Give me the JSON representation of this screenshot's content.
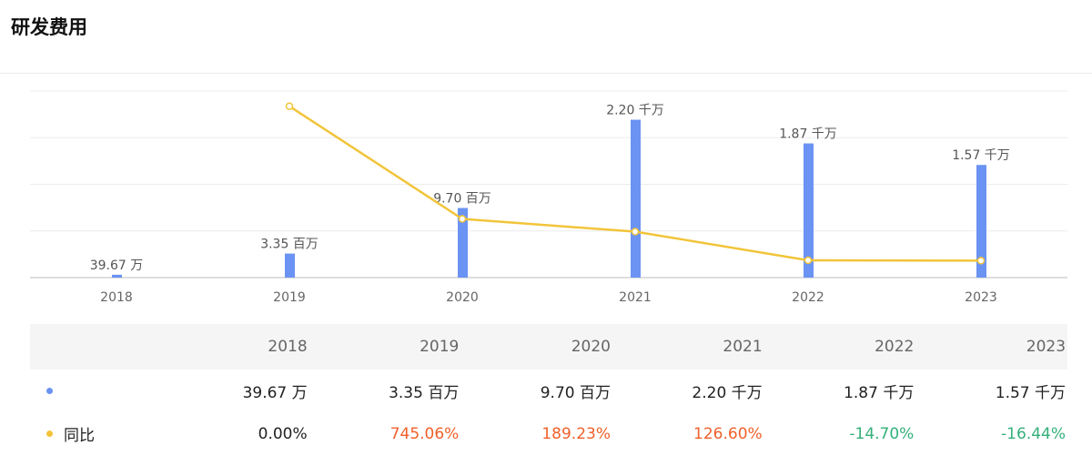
{
  "title": "研发费用",
  "colors": {
    "bar": "#6b93f3",
    "line": "#f2c43a",
    "positive": "#f0602a",
    "negative": "#33b07a",
    "neutral": "#222222"
  },
  "chart_data": {
    "type": "bar",
    "categories": [
      "2018",
      "2019",
      "2020",
      "2021",
      "2022",
      "2023"
    ],
    "series": [
      {
        "values": [
          396700,
          3350000,
          9700000,
          22000000,
          18700000,
          15700000
        ],
        "labels": [
          "39.67 万",
          "3.35 百万",
          "9.70 百万",
          "2.20 千万",
          "1.87 千万",
          "1.57 千万"
        ]
      },
      {
        "name": "同比",
        "type": "line",
        "values": [
          null,
          745.06,
          189.23,
          126.6,
          -14.7,
          -16.44
        ]
      }
    ],
    "grid": true
  },
  "table": {
    "headers": [
      "2018",
      "2019",
      "2020",
      "2021",
      "2022",
      "2023"
    ],
    "rows": [
      {
        "name": "",
        "color": "#6b93f3",
        "cells": [
          "39.67 万",
          "3.35 百万",
          "9.70 百万",
          "2.20 千万",
          "1.87 千万",
          "1.57 千万"
        ],
        "tones": [
          "neutral",
          "neutral",
          "neutral",
          "neutral",
          "neutral",
          "neutral"
        ]
      },
      {
        "name": "同比",
        "color": "#f2c43a",
        "cells": [
          "0.00%",
          "745.06%",
          "189.23%",
          "126.60%",
          "-14.70%",
          "-16.44%"
        ],
        "tones": [
          "neutral",
          "positive",
          "positive",
          "positive",
          "negative",
          "negative"
        ]
      }
    ]
  }
}
